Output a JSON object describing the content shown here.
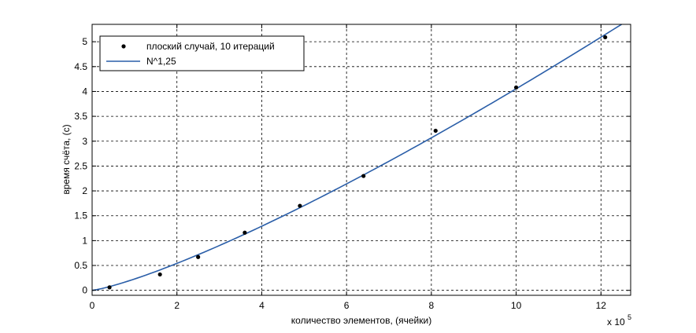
{
  "chart_data": {
    "type": "scatter",
    "xlabel": "количество элементов, (ячейки)",
    "ylabel": "время счёта, (с)",
    "x_multiplier_base": "x 10",
    "x_multiplier_exp": "5",
    "xlim": [
      0,
      12.7
    ],
    "ylim": [
      -0.1,
      5.35
    ],
    "x_ticks": [
      "0",
      "2",
      "4",
      "6",
      "8",
      "10",
      "12"
    ],
    "y_ticks": [
      "0",
      "0.5",
      "1",
      "1.5",
      "2",
      "2.5",
      "3",
      "3.5",
      "4",
      "4.5",
      "5"
    ],
    "grid": true,
    "legend_position": "top-left",
    "series": [
      {
        "name": "плоский случай, 10 итераций",
        "kind": "markers",
        "color": "#000000",
        "x": [
          0.41,
          1.6,
          2.5,
          3.6,
          4.9,
          6.4,
          8.1,
          10.0,
          12.1
        ],
        "y": [
          0.06,
          0.32,
          0.67,
          1.16,
          1.7,
          2.3,
          3.21,
          4.08,
          5.09
        ]
      },
      {
        "name": "N^1,25",
        "kind": "line",
        "color": "#2a5ea8",
        "formula": "y = 0.228 * x^1.25",
        "coef": 0.228,
        "exponent": 1.25,
        "x_range": [
          0,
          12.7
        ]
      }
    ]
  }
}
